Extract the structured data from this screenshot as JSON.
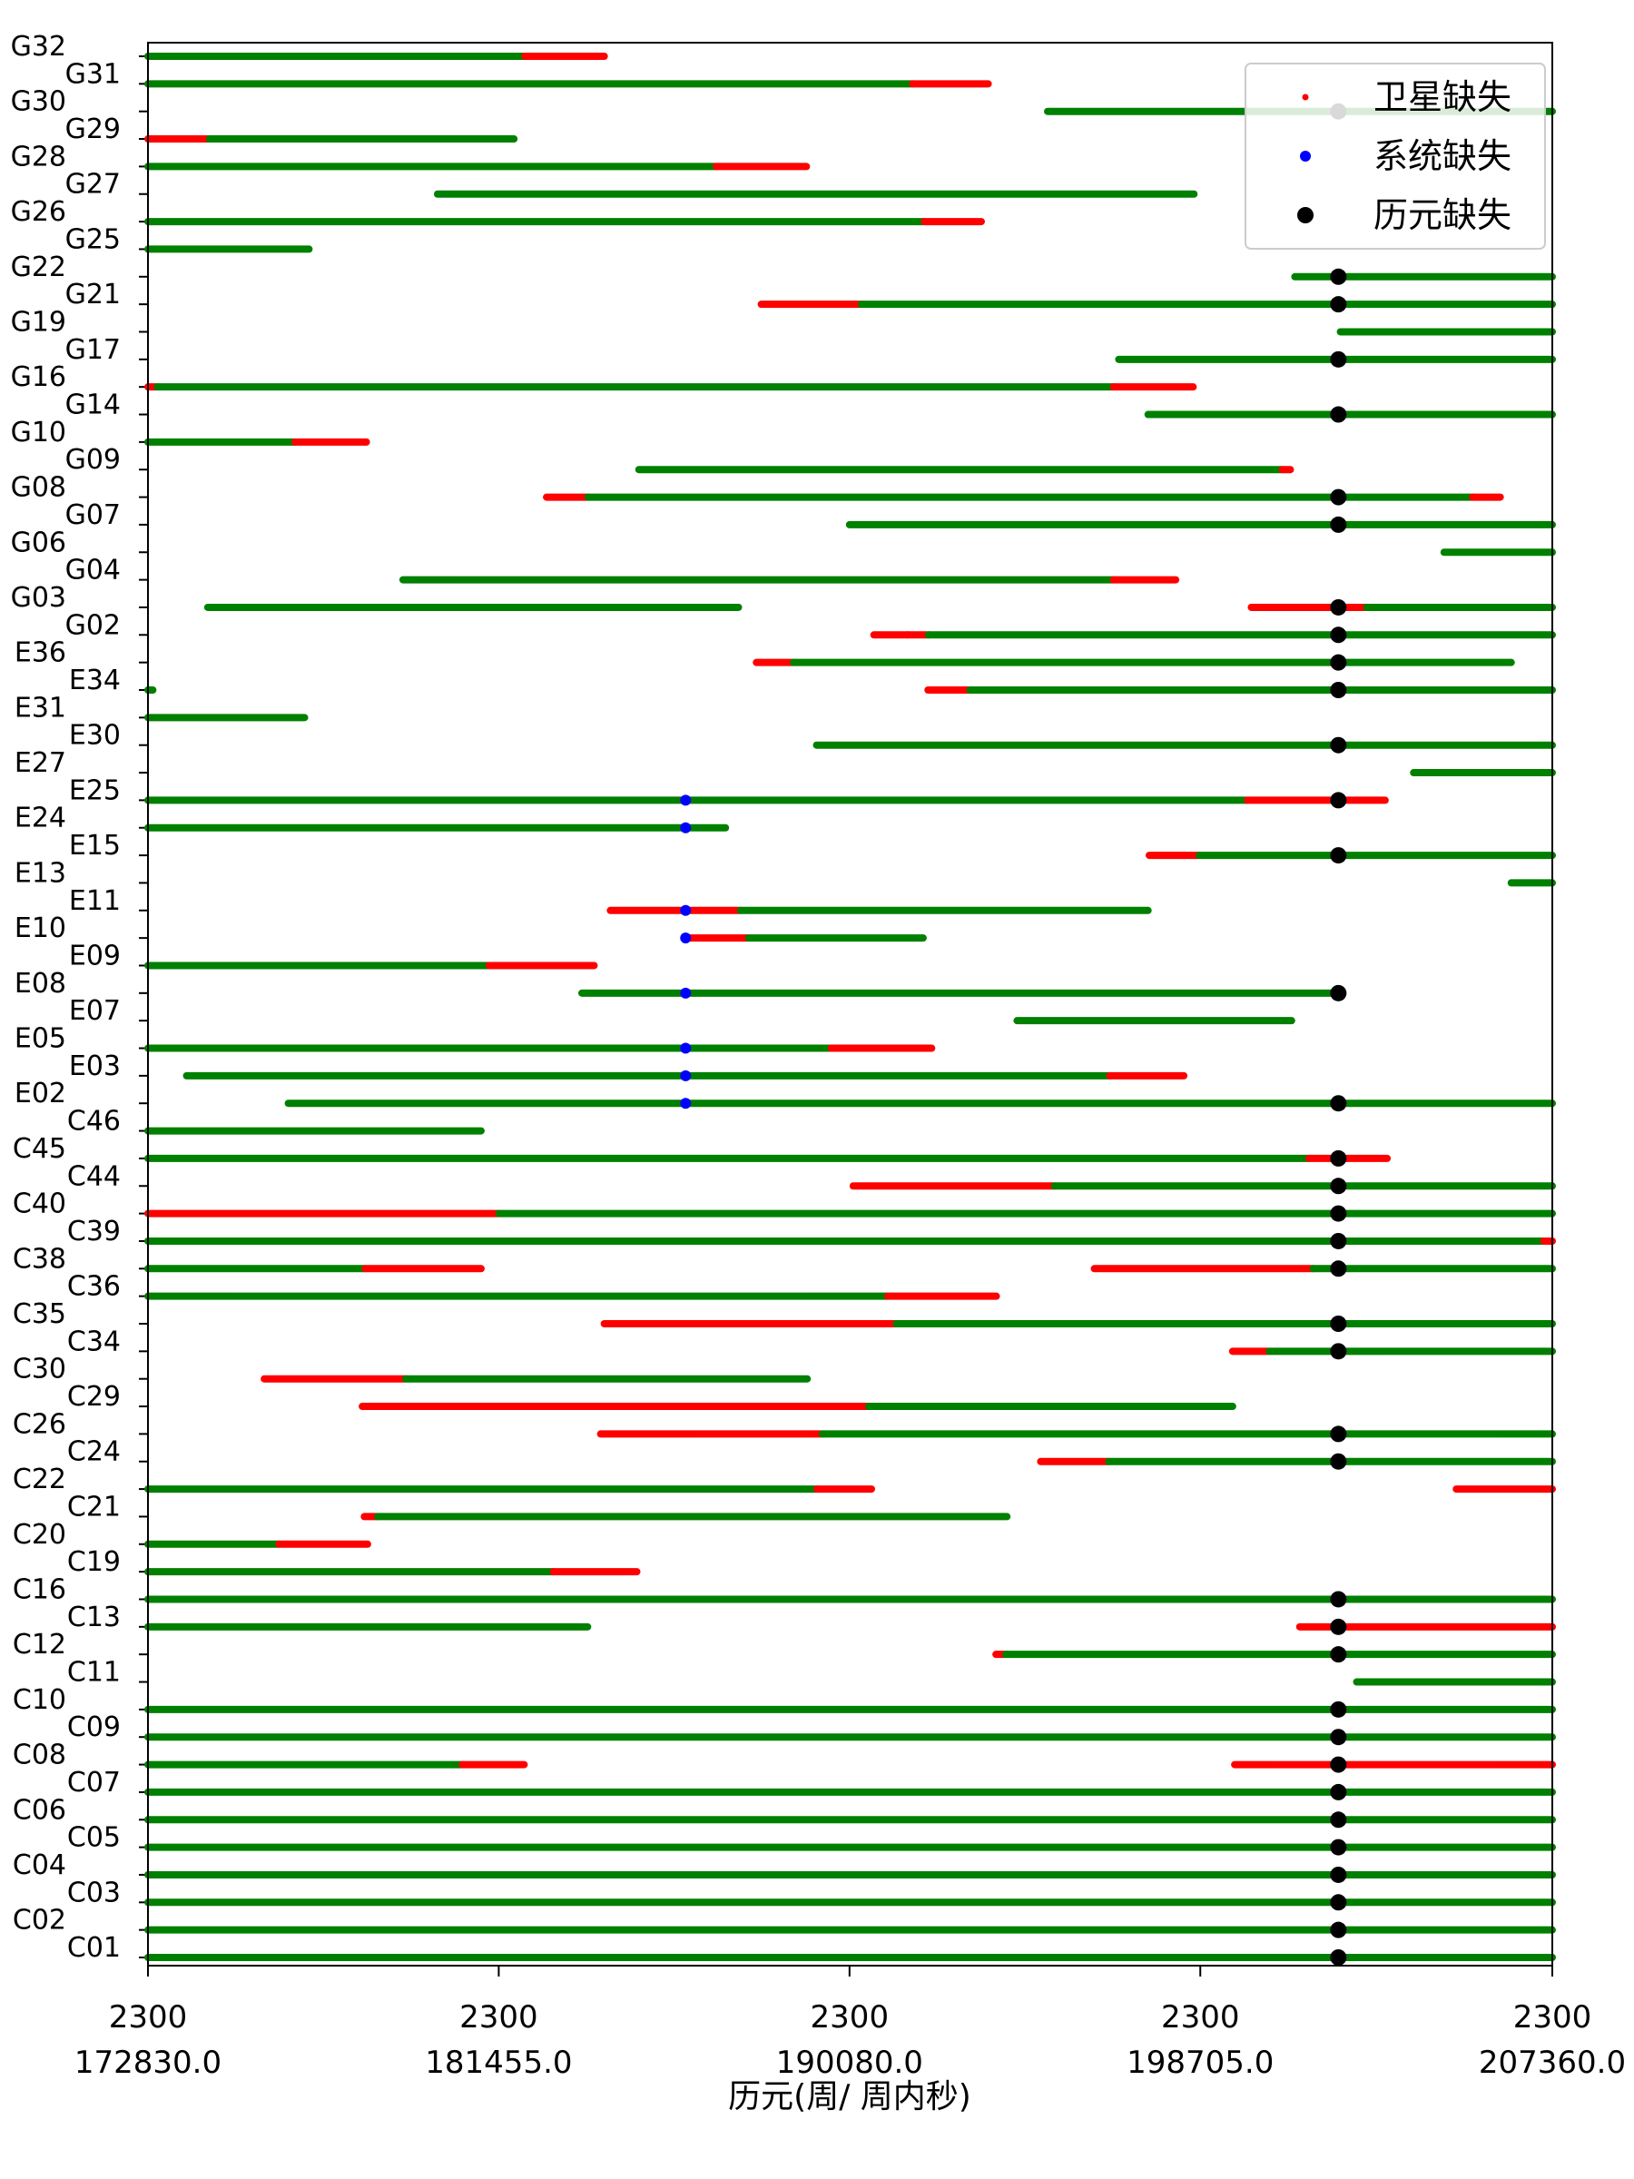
{
  "chart_data": {
    "type": "timeline",
    "xlabel": "历元(周/ 周内秒)",
    "xlim": [
      172830.0,
      207360.0
    ],
    "x_ticks": [
      {
        "week": "2300",
        "sow": "172830.0",
        "value": 172830.0
      },
      {
        "week": "2300",
        "sow": "181455.0",
        "value": 181455.0
      },
      {
        "week": "2300",
        "sow": "190080.0",
        "value": 190080.0
      },
      {
        "week": "2300",
        "sow": "198705.0",
        "value": 198705.0
      },
      {
        "week": "2300",
        "sow": "207360.0",
        "value": 207360.0
      }
    ],
    "legend": {
      "placement": "top-right",
      "entries": [
        {
          "key": "sat",
          "label": "卫星缺失",
          "color": "#ff0000",
          "marker": "small-dot"
        },
        {
          "key": "sys",
          "label": "系统缺失",
          "color": "#0000ff",
          "marker": "dot"
        },
        {
          "key": "epoch",
          "label": "历元缺失",
          "color": "#000000",
          "marker": "large-dot"
        }
      ]
    },
    "colors": {
      "available": "#008000",
      "sat": "#ff0000",
      "sys": "#0000ff",
      "epoch": "#000000"
    },
    "epoch_missing_x": 202100,
    "system_missing_x": 186050,
    "satellites": [
      {
        "name": "C01",
        "segments": [
          [
            172830,
            207360,
            "g"
          ]
        ],
        "epoch": true,
        "sys": false
      },
      {
        "name": "C02",
        "segments": [
          [
            172830,
            207360,
            "g"
          ]
        ],
        "epoch": true,
        "sys": false
      },
      {
        "name": "C03",
        "segments": [
          [
            172830,
            207360,
            "g"
          ]
        ],
        "epoch": true,
        "sys": false
      },
      {
        "name": "C04",
        "segments": [
          [
            172830,
            207360,
            "g"
          ]
        ],
        "epoch": true,
        "sys": false
      },
      {
        "name": "C05",
        "segments": [
          [
            172830,
            207360,
            "g"
          ]
        ],
        "epoch": true,
        "sys": false
      },
      {
        "name": "C06",
        "segments": [
          [
            172830,
            207360,
            "g"
          ]
        ],
        "epoch": true,
        "sys": false
      },
      {
        "name": "C07",
        "segments": [
          [
            172830,
            207360,
            "g"
          ]
        ],
        "epoch": true,
        "sys": false
      },
      {
        "name": "C08",
        "segments": [
          [
            172830,
            180560,
            "g"
          ],
          [
            180560,
            182080,
            "r"
          ],
          [
            199550,
            207360,
            "r"
          ]
        ],
        "epoch": true,
        "sys": false
      },
      {
        "name": "C09",
        "segments": [
          [
            172830,
            207360,
            "g"
          ]
        ],
        "epoch": true,
        "sys": false
      },
      {
        "name": "C10",
        "segments": [
          [
            172830,
            207360,
            "g"
          ]
        ],
        "epoch": true,
        "sys": false
      },
      {
        "name": "C11",
        "segments": [
          [
            202550,
            207360,
            "g"
          ]
        ],
        "epoch": false,
        "sys": false
      },
      {
        "name": "C12",
        "segments": [
          [
            193680,
            193920,
            "r"
          ],
          [
            193920,
            207360,
            "g"
          ]
        ],
        "epoch": true,
        "sys": false
      },
      {
        "name": "C13",
        "segments": [
          [
            172830,
            183640,
            "g"
          ],
          [
            201150,
            207360,
            "r"
          ]
        ],
        "epoch": true,
        "sys": false
      },
      {
        "name": "C16",
        "segments": [
          [
            172830,
            207360,
            "g"
          ]
        ],
        "epoch": true,
        "sys": false
      },
      {
        "name": "C19",
        "segments": [
          [
            172830,
            182800,
            "g"
          ],
          [
            182800,
            184850,
            "r"
          ]
        ],
        "epoch": false,
        "sys": false
      },
      {
        "name": "C20",
        "segments": [
          [
            172830,
            176050,
            "g"
          ],
          [
            176050,
            178230,
            "r"
          ]
        ],
        "epoch": false,
        "sys": false
      },
      {
        "name": "C21",
        "segments": [
          [
            178150,
            178480,
            "r"
          ],
          [
            178480,
            193950,
            "g"
          ]
        ],
        "epoch": false,
        "sys": false
      },
      {
        "name": "C22",
        "segments": [
          [
            172830,
            189280,
            "g"
          ],
          [
            189280,
            190620,
            "r"
          ],
          [
            205000,
            207360,
            "r"
          ]
        ],
        "epoch": false,
        "sys": false
      },
      {
        "name": "C24",
        "segments": [
          [
            194780,
            196450,
            "r"
          ],
          [
            196450,
            207360,
            "g"
          ]
        ],
        "epoch": true,
        "sys": false
      },
      {
        "name": "C26",
        "segments": [
          [
            183960,
            189410,
            "r"
          ],
          [
            189410,
            207360,
            "g"
          ]
        ],
        "epoch": true,
        "sys": false
      },
      {
        "name": "C29",
        "segments": [
          [
            178100,
            190550,
            "r"
          ],
          [
            190550,
            199500,
            "g"
          ]
        ],
        "epoch": false,
        "sys": false
      },
      {
        "name": "C30",
        "segments": [
          [
            175690,
            179170,
            "r"
          ],
          [
            179170,
            189040,
            "g"
          ]
        ],
        "epoch": false,
        "sys": false
      },
      {
        "name": "C34",
        "segments": [
          [
            199500,
            200400,
            "r"
          ],
          [
            200400,
            207360,
            "g"
          ]
        ],
        "epoch": true,
        "sys": false
      },
      {
        "name": "C35",
        "segments": [
          [
            184050,
            191230,
            "r"
          ],
          [
            191230,
            207360,
            "g"
          ]
        ],
        "epoch": true,
        "sys": false
      },
      {
        "name": "C36",
        "segments": [
          [
            172830,
            191020,
            "g"
          ],
          [
            191020,
            193690,
            "r"
          ]
        ],
        "epoch": false,
        "sys": false
      },
      {
        "name": "C38",
        "segments": [
          [
            172830,
            178170,
            "g"
          ],
          [
            178170,
            181020,
            "r"
          ],
          [
            196100,
            201480,
            "r"
          ],
          [
            201480,
            207360,
            "g"
          ]
        ],
        "epoch": true,
        "sys": false
      },
      {
        "name": "C39",
        "segments": [
          [
            172830,
            207150,
            "g"
          ],
          [
            207150,
            207360,
            "r"
          ]
        ],
        "epoch": true,
        "sys": false
      },
      {
        "name": "C40",
        "segments": [
          [
            172830,
            181460,
            "r"
          ],
          [
            181460,
            207360,
            "g"
          ]
        ],
        "epoch": true,
        "sys": false
      },
      {
        "name": "C44",
        "segments": [
          [
            190170,
            195120,
            "r"
          ],
          [
            195120,
            207360,
            "g"
          ]
        ],
        "epoch": true,
        "sys": false
      },
      {
        "name": "C45",
        "segments": [
          [
            172830,
            201380,
            "g"
          ],
          [
            201380,
            203300,
            "r"
          ]
        ],
        "epoch": true,
        "sys": false
      },
      {
        "name": "C46",
        "segments": [
          [
            172830,
            181020,
            "g"
          ]
        ],
        "epoch": false,
        "sys": false
      },
      {
        "name": "E02",
        "segments": [
          [
            176280,
            207360,
            "g"
          ]
        ],
        "epoch": true,
        "sys": true
      },
      {
        "name": "E03",
        "segments": [
          [
            173780,
            196480,
            "g"
          ],
          [
            196480,
            198300,
            "r"
          ]
        ],
        "epoch": false,
        "sys": true
      },
      {
        "name": "E05",
        "segments": [
          [
            172830,
            189630,
            "g"
          ],
          [
            189630,
            192100,
            "r"
          ]
        ],
        "epoch": false,
        "sys": true
      },
      {
        "name": "E07",
        "segments": [
          [
            194200,
            200950,
            "g"
          ]
        ],
        "epoch": false,
        "sys": false
      },
      {
        "name": "E08",
        "segments": [
          [
            183500,
            202150,
            "g"
          ]
        ],
        "epoch": true,
        "sys": true
      },
      {
        "name": "E09",
        "segments": [
          [
            172830,
            181220,
            "g"
          ],
          [
            181220,
            183800,
            "r"
          ]
        ],
        "epoch": false,
        "sys": false
      },
      {
        "name": "E10",
        "segments": [
          [
            186050,
            187600,
            "r"
          ],
          [
            187600,
            191890,
            "g"
          ]
        ],
        "epoch": false,
        "sys": true
      },
      {
        "name": "E11",
        "segments": [
          [
            184200,
            187400,
            "r"
          ],
          [
            187400,
            197420,
            "g"
          ]
        ],
        "epoch": false,
        "sys": true
      },
      {
        "name": "E13",
        "segments": [
          [
            206350,
            207360,
            "g"
          ]
        ],
        "epoch": false,
        "sys": false
      },
      {
        "name": "E15",
        "segments": [
          [
            197450,
            198680,
            "r"
          ],
          [
            198680,
            207360,
            "g"
          ]
        ],
        "epoch": true,
        "sys": false
      },
      {
        "name": "E24",
        "segments": [
          [
            172830,
            187030,
            "g"
          ]
        ],
        "epoch": false,
        "sys": true
      },
      {
        "name": "E25",
        "segments": [
          [
            172830,
            199860,
            "g"
          ],
          [
            199860,
            203250,
            "r"
          ]
        ],
        "epoch": true,
        "sys": true
      },
      {
        "name": "E27",
        "segments": [
          [
            203950,
            207360,
            "g"
          ]
        ],
        "epoch": false,
        "sys": false
      },
      {
        "name": "E30",
        "segments": [
          [
            189270,
            207360,
            "g"
          ]
        ],
        "epoch": true,
        "sys": false
      },
      {
        "name": "E31",
        "segments": [
          [
            172830,
            176680,
            "g"
          ]
        ],
        "epoch": false,
        "sys": false
      },
      {
        "name": "E34",
        "segments": [
          [
            172830,
            172950,
            "g"
          ],
          [
            192010,
            193040,
            "r"
          ],
          [
            193040,
            207360,
            "g"
          ]
        ],
        "epoch": true,
        "sys": false
      },
      {
        "name": "E36",
        "segments": [
          [
            187790,
            188700,
            "r"
          ],
          [
            188700,
            206350,
            "g"
          ]
        ],
        "epoch": true,
        "sys": false
      },
      {
        "name": "G02",
        "segments": [
          [
            190680,
            191500,
            "r"
          ],
          [
            191500,
            192020,
            "r"
          ],
          [
            192020,
            207360,
            "g"
          ]
        ],
        "epoch": true,
        "sys": false
      },
      {
        "name": "G03",
        "segments": [
          [
            174300,
            187350,
            "g"
          ],
          [
            199960,
            202800,
            "r"
          ],
          [
            202800,
            207360,
            "g"
          ]
        ],
        "epoch": true,
        "sys": false
      },
      {
        "name": "G04",
        "segments": [
          [
            179100,
            196570,
            "g"
          ],
          [
            196570,
            198100,
            "r"
          ]
        ],
        "epoch": false,
        "sys": false
      },
      {
        "name": "G06",
        "segments": [
          [
            204700,
            207360,
            "g"
          ]
        ],
        "epoch": false,
        "sys": false
      },
      {
        "name": "G07",
        "segments": [
          [
            190080,
            207360,
            "g"
          ]
        ],
        "epoch": true,
        "sys": false
      },
      {
        "name": "G08",
        "segments": [
          [
            182630,
            183650,
            "r"
          ],
          [
            183650,
            205400,
            "g"
          ],
          [
            205400,
            206080,
            "r"
          ]
        ],
        "epoch": true,
        "sys": false
      },
      {
        "name": "G09",
        "segments": [
          [
            184900,
            200720,
            "g"
          ],
          [
            200720,
            200920,
            "r"
          ]
        ],
        "epoch": false,
        "sys": false
      },
      {
        "name": "G10",
        "segments": [
          [
            172830,
            176450,
            "g"
          ],
          [
            176450,
            178200,
            "r"
          ]
        ],
        "epoch": false,
        "sys": false
      },
      {
        "name": "G14",
        "segments": [
          [
            197420,
            207360,
            "g"
          ]
        ],
        "epoch": true,
        "sys": false
      },
      {
        "name": "G16",
        "segments": [
          [
            172830,
            173060,
            "r"
          ],
          [
            173060,
            196570,
            "g"
          ],
          [
            196570,
            198530,
            "r"
          ]
        ],
        "epoch": false,
        "sys": false
      },
      {
        "name": "G17",
        "segments": [
          [
            196700,
            207360,
            "g"
          ]
        ],
        "epoch": true,
        "sys": false
      },
      {
        "name": "G19",
        "segments": [
          [
            202150,
            207360,
            "g"
          ]
        ],
        "epoch": false,
        "sys": false
      },
      {
        "name": "G21",
        "segments": [
          [
            187910,
            190370,
            "r"
          ],
          [
            190370,
            207360,
            "g"
          ]
        ],
        "epoch": true,
        "sys": false
      },
      {
        "name": "G22",
        "segments": [
          [
            201030,
            207360,
            "g"
          ]
        ],
        "epoch": true,
        "sys": false
      },
      {
        "name": "G25",
        "segments": [
          [
            172830,
            176790,
            "g"
          ]
        ],
        "epoch": false,
        "sys": false
      },
      {
        "name": "G26",
        "segments": [
          [
            172830,
            191920,
            "g"
          ],
          [
            191920,
            193320,
            "r"
          ]
        ],
        "epoch": false,
        "sys": false
      },
      {
        "name": "G27",
        "segments": [
          [
            179950,
            198550,
            "g"
          ]
        ],
        "epoch": false,
        "sys": false
      },
      {
        "name": "G28",
        "segments": [
          [
            172830,
            186800,
            "g"
          ],
          [
            186800,
            189020,
            "r"
          ]
        ],
        "epoch": false,
        "sys": false
      },
      {
        "name": "G29",
        "segments": [
          [
            172830,
            174340,
            "r"
          ],
          [
            174340,
            181830,
            "g"
          ]
        ],
        "epoch": false,
        "sys": false
      },
      {
        "name": "G30",
        "segments": [
          [
            194950,
            207360,
            "g"
          ]
        ],
        "epoch": true,
        "sys": false
      },
      {
        "name": "G31",
        "segments": [
          [
            172830,
            191630,
            "g"
          ],
          [
            191630,
            193490,
            "r"
          ]
        ],
        "epoch": false,
        "sys": false
      },
      {
        "name": "G32",
        "segments": [
          [
            172830,
            182100,
            "g"
          ],
          [
            182100,
            184050,
            "r"
          ]
        ],
        "epoch": false,
        "sys": false
      }
    ]
  }
}
